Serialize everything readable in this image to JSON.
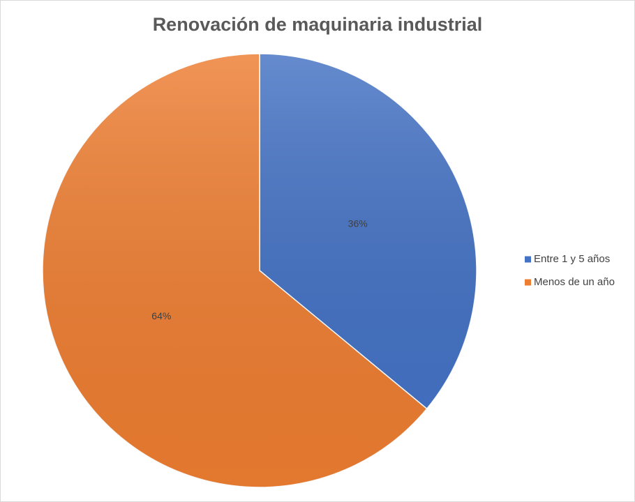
{
  "chart_data": {
    "type": "pie",
    "title": "Renovación de maquinaria industrial",
    "categories": [
      "Entre 1 y 5 años",
      "Menos de un año"
    ],
    "values": [
      36,
      64
    ],
    "value_labels": [
      "36%",
      "64%"
    ],
    "colors": [
      "#4472c4",
      "#ed7d31"
    ],
    "legend": "right"
  }
}
